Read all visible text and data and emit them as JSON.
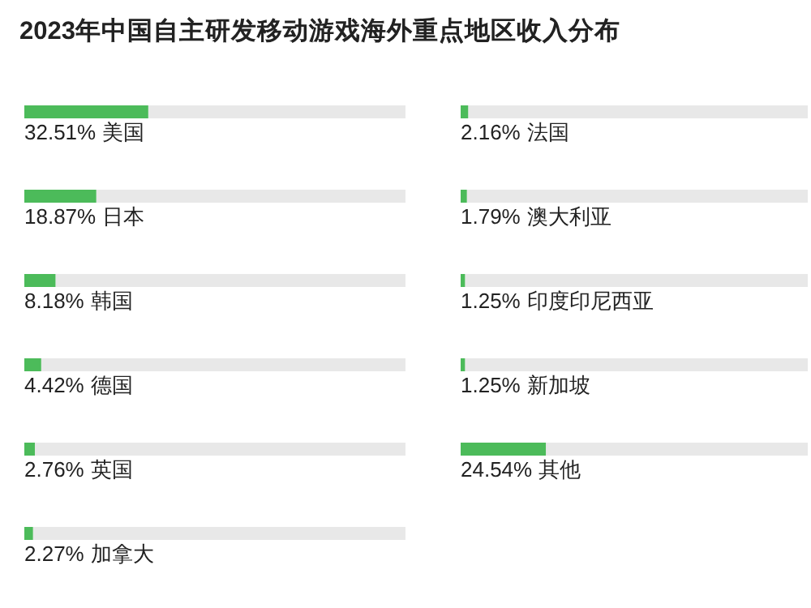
{
  "chart_data": [
    {
      "type": "bar",
      "orientation": "horizontal",
      "title": "2023年中国自主研发移动游戏海外重点地区收入分布",
      "categories": [
        "美国",
        "日本",
        "韩国",
        "德国",
        "英国",
        "加拿大"
      ],
      "values": [
        32.51,
        18.87,
        8.18,
        4.42,
        2.76,
        2.27
      ],
      "value_labels": [
        "32.51%",
        "18.87%",
        "8.18%",
        "4.42%",
        "2.76%",
        "2.27%"
      ],
      "color": "#4cbb5a"
    },
    {
      "type": "bar",
      "orientation": "horizontal",
      "categories": [
        "法国",
        "澳大利亚",
        "印度印尼西亚",
        "新加坡",
        "其他"
      ],
      "values": [
        2.16,
        1.79,
        1.25,
        1.25,
        24.54
      ],
      "value_labels": [
        "2.16%",
        "1.79%",
        "1.25%",
        "1.25%",
        "24.54%"
      ],
      "color": "#4cbb5a"
    }
  ]
}
